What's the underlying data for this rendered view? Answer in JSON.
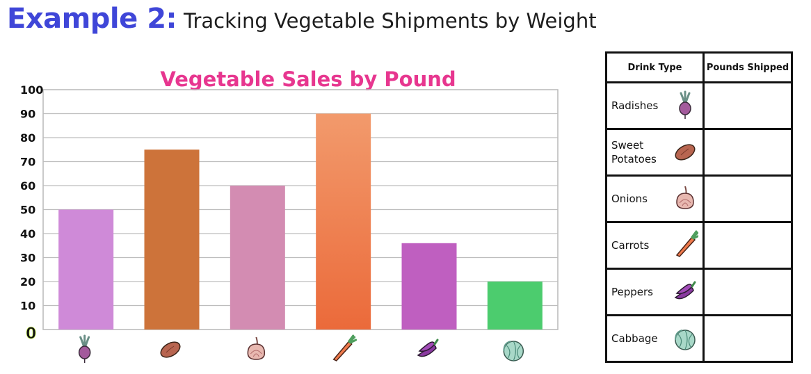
{
  "heading": {
    "example": "Example 2:",
    "subtitle": "Tracking Vegetable Shipments by Weight"
  },
  "chart_data": {
    "type": "bar",
    "title": "Vegetable Sales by Pound",
    "categories": [
      "Radishes",
      "Sweet Potatoes",
      "Onions",
      "Carrots",
      "Peppers",
      "Cabbage"
    ],
    "values": [
      50,
      75,
      60,
      90,
      36,
      20
    ],
    "colors": [
      "#cf8ad8",
      "#cd733a",
      "#d38cb2",
      "#ef8556",
      "#bf5fc0",
      "#4ccc6e"
    ],
    "icons": [
      "radish-icon",
      "sweet-potato-icon",
      "onion-icon",
      "carrot-icon",
      "pepper-icon",
      "cabbage-icon"
    ],
    "yticks": [
      "100",
      "90",
      "80",
      "70",
      "60",
      "50",
      "40",
      "30",
      "20",
      "10",
      "0"
    ],
    "ylim": [
      0,
      100
    ],
    "grid": true,
    "title_color": "#e7368f"
  },
  "table": {
    "headers": [
      "Drink Type",
      "Pounds Shipped"
    ],
    "rows": [
      {
        "name": "Radishes",
        "icon": "radish-icon",
        "value": ""
      },
      {
        "name": "Sweet Potatoes",
        "icon": "sweet-potato-icon",
        "value": ""
      },
      {
        "name": "Onions",
        "icon": "onion-icon",
        "value": ""
      },
      {
        "name": "Carrots",
        "icon": "carrot-icon",
        "value": ""
      },
      {
        "name": "Peppers",
        "icon": "pepper-icon",
        "value": ""
      },
      {
        "name": "Cabbage",
        "icon": "cabbage-icon",
        "value": ""
      }
    ]
  }
}
